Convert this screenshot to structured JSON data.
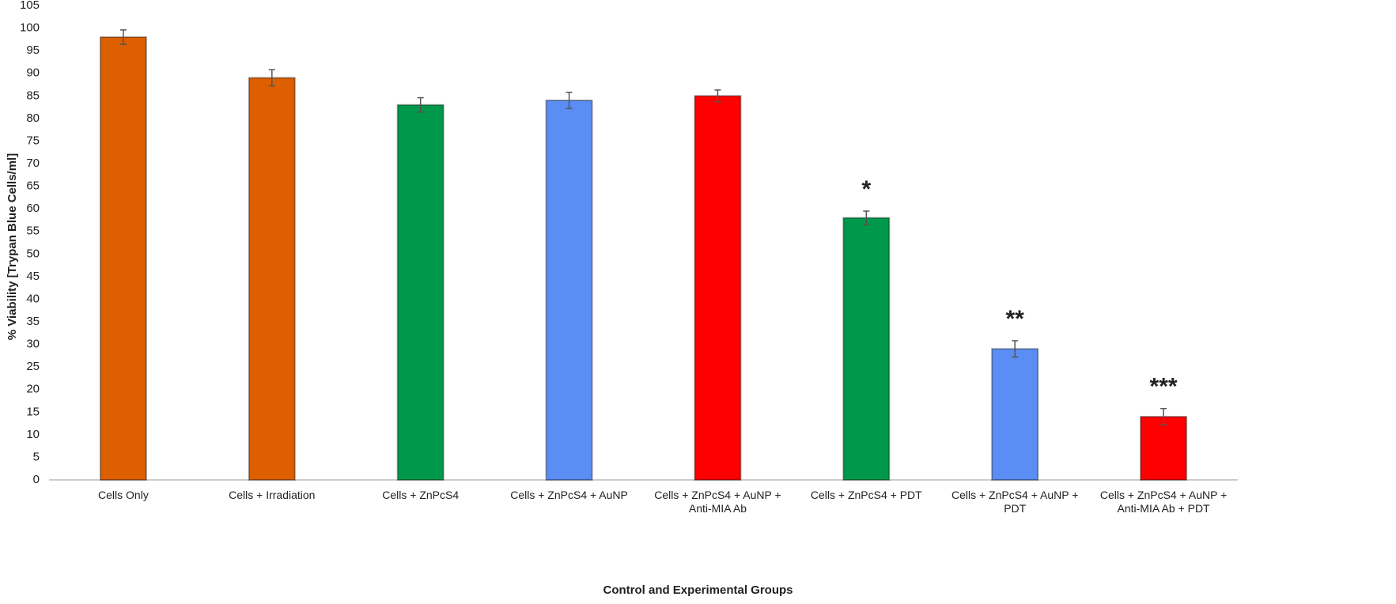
{
  "chart_data": {
    "type": "bar",
    "categories": [
      "Cells Only",
      "Cells + Irradiation",
      "Cells + ZnPcS4",
      "Cells + ZnPcS4 + AuNP",
      "Cells + ZnPcS4 + AuNP + Anti-MIA Ab",
      "Cells + ZnPcS4 + PDT",
      "Cells + ZnPcS4 + AuNP + PDT",
      "Cells + ZnPcS4 + AuNP + Anti-MIA Ab + PDT"
    ],
    "values": [
      98,
      89,
      83,
      84,
      85,
      58,
      29,
      14
    ],
    "errors": [
      1.6,
      1.8,
      1.6,
      1.8,
      1.3,
      1.5,
      1.8,
      1.8
    ],
    "colors": [
      "#dd5f00",
      "#dd5f00",
      "#00984a",
      "#5a8ef5",
      "#ff0000",
      "#00984a",
      "#5a8ef5",
      "#ff0000"
    ],
    "significance": [
      null,
      null,
      null,
      null,
      null,
      "*",
      "**",
      "***"
    ],
    "x_label": "Control and Experimental Groups",
    "y_label": "% Viability [Trypan Blue Cells/ml]",
    "ylim": [
      0,
      105
    ],
    "yticks": [
      0,
      5,
      10,
      15,
      20,
      25,
      30,
      35,
      40,
      45,
      50,
      55,
      60,
      65,
      70,
      75,
      80,
      85,
      90,
      95,
      100,
      105
    ],
    "grid": false
  }
}
